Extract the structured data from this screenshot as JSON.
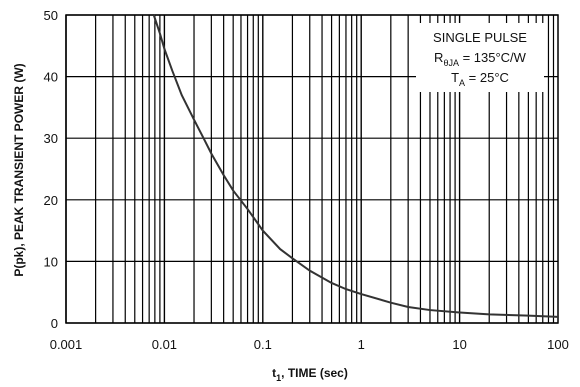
{
  "chart_data": {
    "type": "line",
    "title": "",
    "xlabel": "t",
    "xlabel_sub": "1",
    "xlabel_rest": ", TIME (sec)",
    "ylabel": "P(pk), PEAK TRANSIENT POWER (W)",
    "xscale": "log",
    "xlim": [
      0.001,
      100
    ],
    "ylim": [
      0,
      50
    ],
    "x_ticks": [
      0.001,
      0.01,
      0.1,
      1,
      10,
      100
    ],
    "x_tick_labels": [
      "0.001",
      "0.01",
      "0.1",
      "1",
      "10",
      "100"
    ],
    "y_ticks": [
      0,
      10,
      20,
      30,
      40,
      50
    ],
    "y_tick_labels": [
      "0",
      "10",
      "20",
      "30",
      "40",
      "50"
    ],
    "grid": true,
    "legend_placement": "top-right",
    "annotation": {
      "line1": "SINGLE PULSE",
      "line2_main": "R",
      "line2_sub": "θJA",
      "line2_rest": " = 135°C/W",
      "line3_main": "T",
      "line3_sub": "A",
      "line3_rest": " = 25°C"
    },
    "series": [
      {
        "x": [
          0.0078,
          0.009,
          0.01,
          0.012,
          0.015,
          0.02,
          0.025,
          0.03,
          0.04,
          0.05,
          0.07,
          0.1,
          0.15,
          0.2,
          0.3,
          0.5,
          0.7,
          1,
          2,
          3,
          5,
          10,
          20,
          50,
          100
        ],
        "y": [
          50,
          47,
          44.5,
          41,
          37,
          33,
          30,
          27.5,
          24,
          21.5,
          18.5,
          15,
          12,
          10.5,
          8.5,
          6.5,
          5.5,
          4.7,
          3.3,
          2.6,
          2.1,
          1.7,
          1.4,
          1.2,
          1.0
        ]
      }
    ]
  }
}
